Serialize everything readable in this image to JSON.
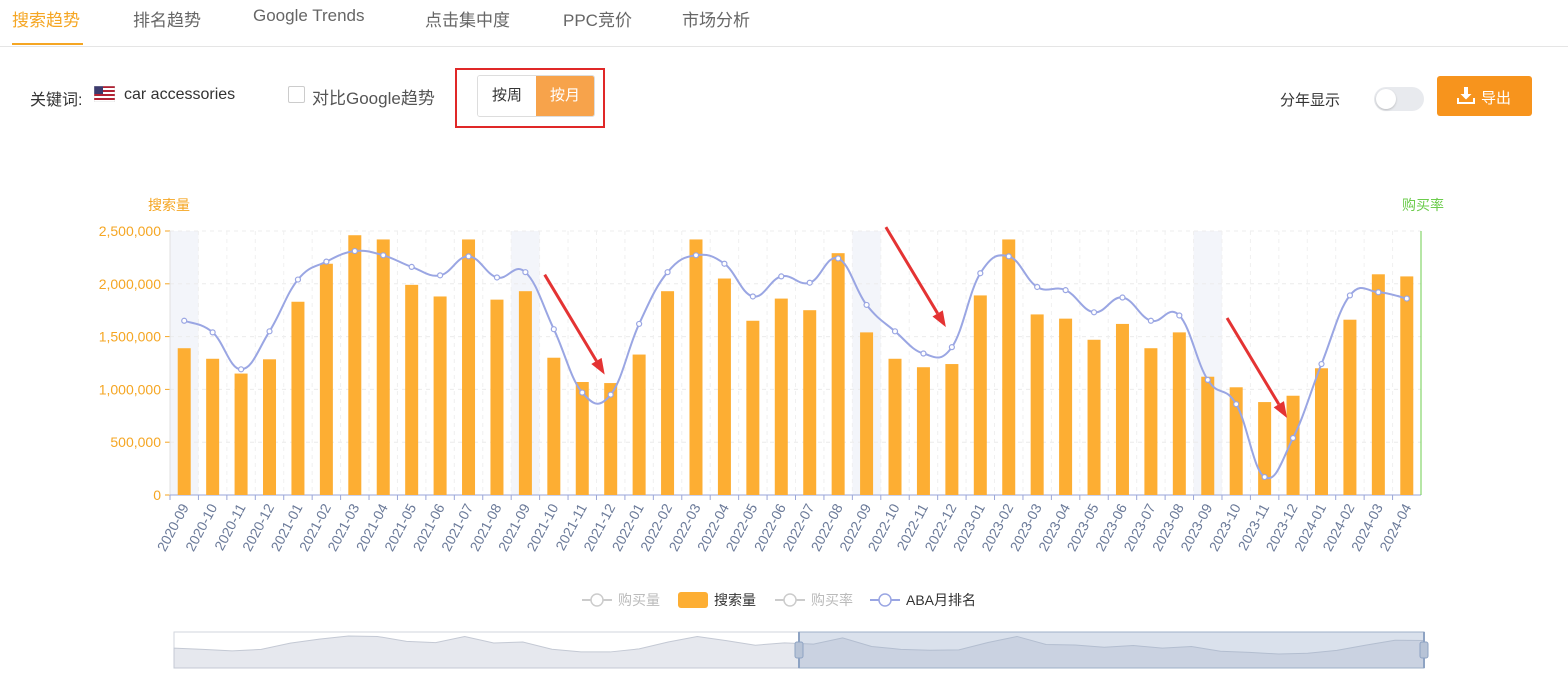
{
  "tabs": [
    {
      "label": "搜索趋势",
      "active": true
    },
    {
      "label": "排名趋势",
      "active": false
    },
    {
      "label": "Google Trends",
      "active": false
    },
    {
      "label": "点击集中度",
      "active": false
    },
    {
      "label": "PPC竞价",
      "active": false
    },
    {
      "label": "市场分析",
      "active": false
    }
  ],
  "toolbar": {
    "keyword_label": "关键词:",
    "flag_icon": "us-flag-icon",
    "keyword": "car accessories",
    "compare_label": "对比Google趋势",
    "compare_checked": false,
    "week_label": "按周",
    "month_label": "按月",
    "selected_period": "month",
    "by_year_label": "分年显示",
    "by_year_on": false,
    "export_label": "导出",
    "export_icon": "download-icon"
  },
  "colors": {
    "accent": "#f5a623",
    "bar": "#fdae33",
    "line": "#9aa6e3",
    "highlight_box": "#e02828",
    "arrow": "#e43333",
    "right_axis": "#6ccc4c"
  },
  "chart_data": {
    "type": "bar",
    "left_axis_title": "搜索量",
    "right_axis_title": "购买率",
    "y_ticks": [
      "0",
      "500,000",
      "1,000,000",
      "1,500,000",
      "2,000,000",
      "2,500,000"
    ],
    "ylim": [
      0,
      2500000
    ],
    "categories": [
      "2020-09",
      "2020-10",
      "2020-11",
      "2020-12",
      "2021-01",
      "2021-02",
      "2021-03",
      "2021-04",
      "2021-05",
      "2021-06",
      "2021-07",
      "2021-08",
      "2021-09",
      "2021-10",
      "2021-11",
      "2021-12",
      "2022-01",
      "2022-02",
      "2022-03",
      "2022-04",
      "2022-05",
      "2022-06",
      "2022-07",
      "2022-08",
      "2022-09",
      "2022-10",
      "2022-11",
      "2022-12",
      "2023-01",
      "2023-02",
      "2023-03",
      "2023-04",
      "2023-05",
      "2023-06",
      "2023-07",
      "2023-08",
      "2023-09",
      "2023-10",
      "2023-11",
      "2023-12",
      "2024-01",
      "2024-02",
      "2024-03",
      "2024-04"
    ],
    "bars": {
      "name": "搜索量",
      "values": [
        1390000,
        1290000,
        1150000,
        1285000,
        1830000,
        2190000,
        2460000,
        2420000,
        1990000,
        1880000,
        2420000,
        1850000,
        1930000,
        1300000,
        1070000,
        1060000,
        1330000,
        1930000,
        2420000,
        2050000,
        1650000,
        1860000,
        1750000,
        2290000,
        1540000,
        1290000,
        1210000,
        1240000,
        1890000,
        2420000,
        1710000,
        1670000,
        1470000,
        1620000,
        1390000,
        1540000,
        1120000,
        1020000,
        880000,
        940000,
        1200000,
        1660000,
        2090000,
        2070000
      ]
    },
    "line": {
      "name": "ABA月排名",
      "values": [
        1650000,
        1540000,
        1190000,
        1550000,
        2040000,
        2210000,
        2310000,
        2270000,
        2160000,
        2080000,
        2260000,
        2060000,
        2110000,
        1570000,
        970000,
        950000,
        1620000,
        2110000,
        2270000,
        2190000,
        1880000,
        2070000,
        2010000,
        2240000,
        1800000,
        1550000,
        1340000,
        1400000,
        2100000,
        2260000,
        1970000,
        1940000,
        1730000,
        1870000,
        1650000,
        1700000,
        1090000,
        860000,
        170000,
        540000,
        1240000,
        1890000,
        1920000,
        1860000
      ]
    },
    "legend": [
      {
        "label": "购买量",
        "active": false
      },
      {
        "label": "搜索量",
        "active": true
      },
      {
        "label": "购买率",
        "active": false
      },
      {
        "label": "ABA月排名",
        "active": true
      }
    ],
    "highlighted_months": [
      "2020-09",
      "2021-09",
      "2022-09",
      "2023-09"
    ],
    "arrow_targets": [
      "2021-12",
      "2022-12",
      "2023-12"
    ],
    "slider_range": [
      0.5,
      1.0
    ],
    "grid": true
  }
}
